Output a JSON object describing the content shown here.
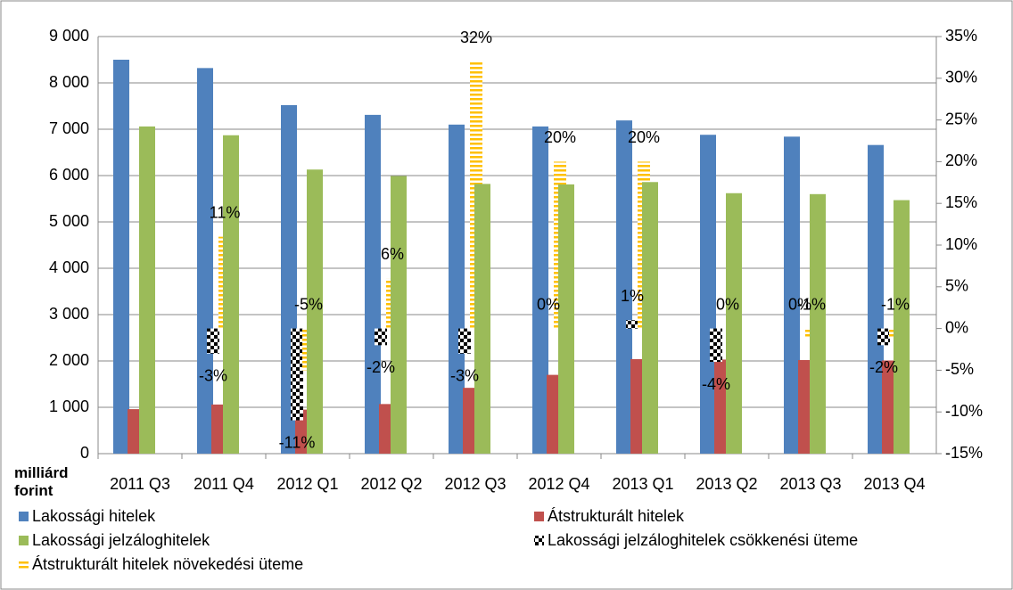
{
  "chart_data": {
    "type": "bar",
    "y_label": "milliárd forint",
    "categories": [
      "2011 Q3",
      "2011 Q4",
      "2012 Q1",
      "2012 Q2",
      "2012 Q3",
      "2012 Q4",
      "2013 Q1",
      "2013 Q2",
      "2013 Q3",
      "2013 Q4"
    ],
    "ylim": [
      0,
      9000
    ],
    "yticks": [
      0,
      {
        "value": 1000,
        "label": "1 000"
      },
      {
        "value": 2000,
        "label": "2 000"
      },
      {
        "value": 3000,
        "label": "3 000"
      },
      {
        "value": 4000,
        "label": "4 000"
      },
      {
        "value": 5000,
        "label": "5 000"
      },
      {
        "value": 6000,
        "label": "6 000"
      },
      {
        "value": 7000,
        "label": "7 000"
      },
      {
        "value": 8000,
        "label": "8 000"
      },
      {
        "value": 9000,
        "label": "9 000"
      }
    ],
    "y2lim": [
      -15,
      35
    ],
    "y2ticks": [
      {
        "value": -15,
        "label": "-15%"
      },
      {
        "value": -10,
        "label": "-10%"
      },
      {
        "value": -5,
        "label": "-5%"
      },
      {
        "value": 0,
        "label": "0%"
      },
      {
        "value": 5,
        "label": "5%"
      },
      {
        "value": 10,
        "label": "10%"
      },
      {
        "value": 15,
        "label": "15%"
      },
      {
        "value": 20,
        "label": "20%"
      },
      {
        "value": 25,
        "label": "25%"
      },
      {
        "value": 30,
        "label": "30%"
      },
      {
        "value": 35,
        "label": "35%"
      }
    ],
    "grid": true,
    "series": [
      {
        "name": "Lakossági hitelek",
        "color": "#4f81bd",
        "values": [
          8500,
          8320,
          7520,
          7310,
          7100,
          7060,
          7190,
          6880,
          6840,
          6660
        ]
      },
      {
        "name": "Átstrukturált hitelek",
        "color": "#c0504d",
        "values": [
          960,
          1060,
          950,
          1070,
          1420,
          1700,
          2040,
          2030,
          2020,
          2010
        ]
      },
      {
        "name": "Lakossági jelzáloghitelek",
        "color": "#9bbb59",
        "values": [
          7060,
          6870,
          6130,
          5990,
          5820,
          5810,
          5860,
          5620,
          5600,
          5470
        ]
      },
      {
        "name": "Lakossági jelzáloghitelek csökkenési üteme",
        "color": "#000000",
        "axis": "y2",
        "values": [
          null,
          -3,
          -11,
          -2,
          -3,
          0,
          1,
          -4,
          0,
          -2
        ],
        "value_labels": [
          null,
          "-3%",
          "-11%",
          "-2%",
          "-3%",
          "0%",
          "1%",
          "-4%",
          "0%",
          "-2%"
        ]
      },
      {
        "name": "Átstrukturált hitelek növekedési üteme",
        "color": "#ffc000",
        "axis": "y2",
        "values": [
          null,
          11,
          -5,
          6,
          32,
          20,
          20,
          0,
          -1,
          -1
        ],
        "value_labels": [
          null,
          "11%",
          "-5%",
          "6%",
          "32%",
          "20%",
          "20%",
          "0%",
          "-1%",
          "-1%"
        ]
      }
    ]
  }
}
